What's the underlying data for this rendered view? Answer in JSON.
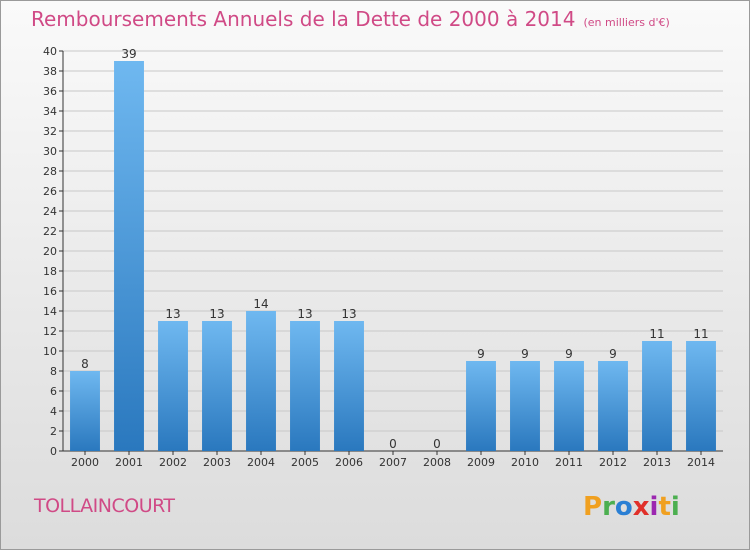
{
  "title": "Remboursements Annuels de la Dette de 2000 à 2014",
  "subtitle": "(en milliers d'€)",
  "commune": "TOLLAINCOURT",
  "brand": {
    "letters": [
      "P",
      "r",
      "o",
      "x",
      "i",
      "t",
      "i"
    ],
    "colors": [
      "#f0a020",
      "#4caf50",
      "#2a7fd4",
      "#e0302a",
      "#9c27b0",
      "#f0a020",
      "#4caf50"
    ]
  },
  "colors": {
    "title": "#d04a86",
    "bar_light": "#6fb8f0",
    "bar_dark": "#2a78be",
    "grid": "#c8c8c8"
  },
  "chart_data": {
    "type": "bar",
    "categories": [
      "2000",
      "2001",
      "2002",
      "2003",
      "2004",
      "2005",
      "2006",
      "2007",
      "2008",
      "2009",
      "2010",
      "2011",
      "2012",
      "2013",
      "2014"
    ],
    "values": [
      8,
      39,
      13,
      13,
      14,
      13,
      13,
      0,
      0,
      9,
      9,
      9,
      9,
      11,
      11
    ],
    "ylim": [
      0,
      40
    ],
    "ytick_step": 2,
    "grid": true
  }
}
